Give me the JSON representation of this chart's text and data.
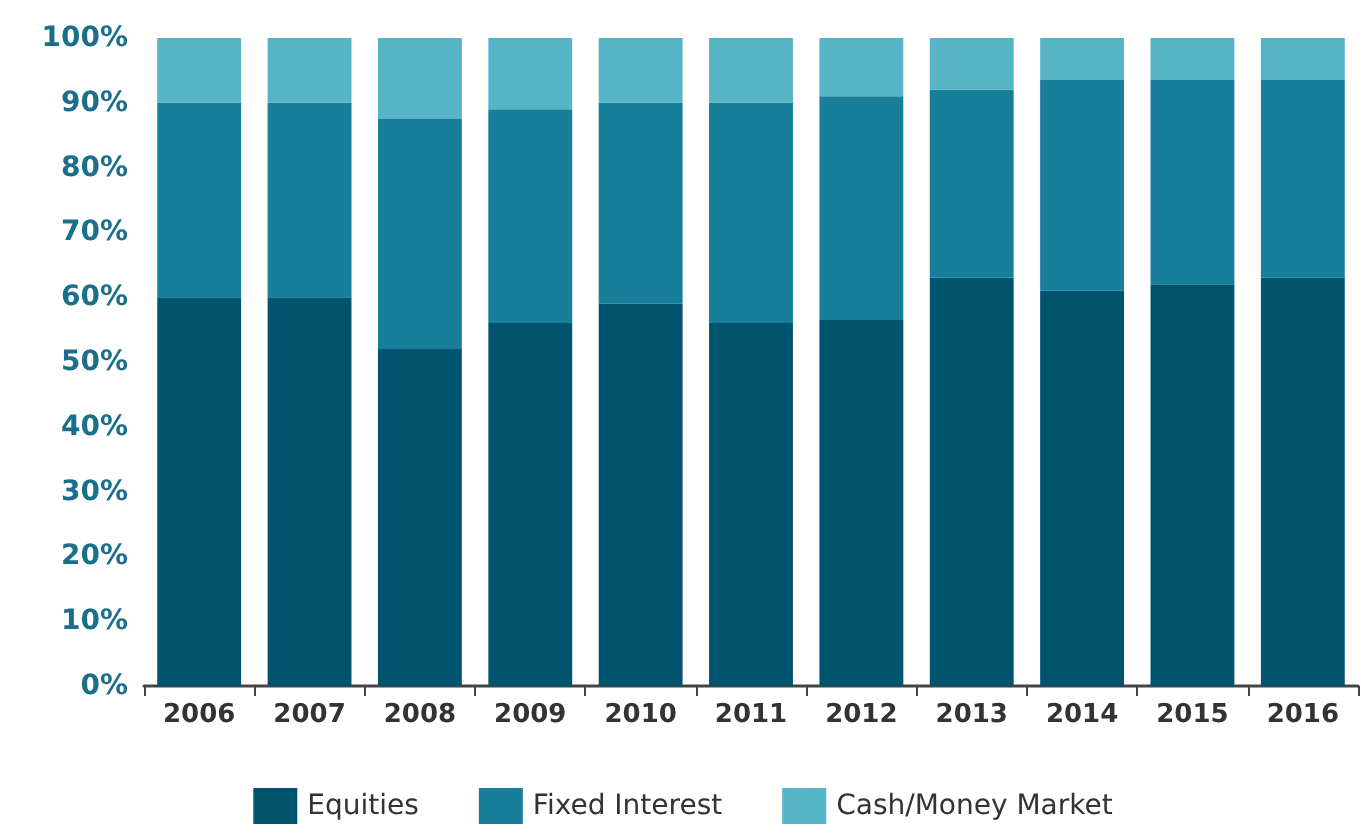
{
  "chart_data": {
    "type": "bar",
    "stacked": true,
    "categories": [
      "2006",
      "2007",
      "2008",
      "2009",
      "2010",
      "2011",
      "2012",
      "2013",
      "2014",
      "2015",
      "2016"
    ],
    "series": [
      {
        "name": "Equities",
        "color": "#00546e",
        "values": [
          60,
          60,
          52,
          56,
          59,
          56,
          56.5,
          63,
          61,
          62,
          63
        ]
      },
      {
        "name": "Fixed Interest",
        "color": "#177f99",
        "values": [
          30,
          30,
          35.5,
          33,
          31,
          34,
          34.5,
          29,
          32.5,
          31.5,
          30.5
        ]
      },
      {
        "name": "Cash/Money Market",
        "color": "#57b3c6",
        "values": [
          10,
          10,
          12.5,
          11,
          10,
          10,
          9,
          8,
          6.5,
          6.5,
          6.5
        ]
      }
    ],
    "ylim": [
      0,
      100
    ],
    "yticks": [
      {
        "value": 0,
        "label": "0%"
      },
      {
        "value": 10,
        "label": "10%"
      },
      {
        "value": 20,
        "label": "20%"
      },
      {
        "value": 30,
        "label": "30%"
      },
      {
        "value": 40,
        "label": "40%"
      },
      {
        "value": 50,
        "label": "50%"
      },
      {
        "value": 60,
        "label": "60%"
      },
      {
        "value": 70,
        "label": "70%"
      },
      {
        "value": 80,
        "label": "80%"
      },
      {
        "value": 90,
        "label": "90%"
      },
      {
        "value": 100,
        "label": "100%"
      }
    ],
    "grid": false,
    "legend": "bottom"
  }
}
